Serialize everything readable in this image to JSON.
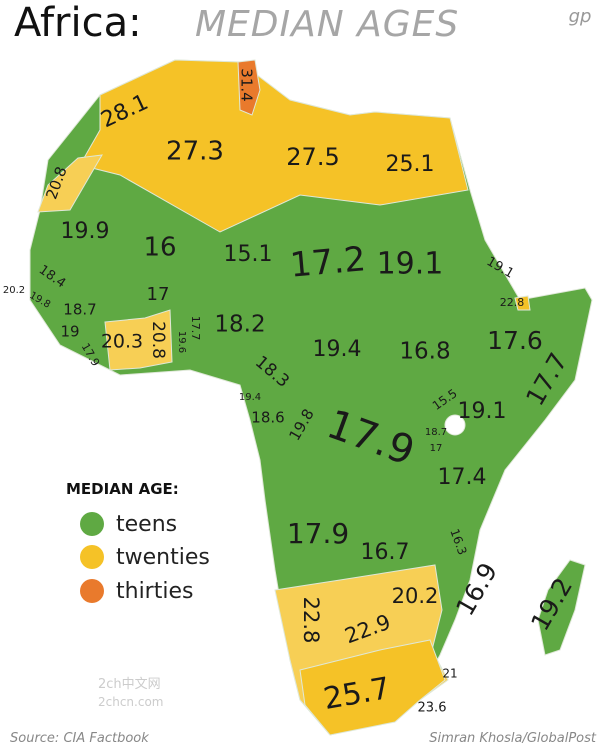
{
  "header": {
    "title": "Africa:",
    "subtitle": "MEDIAN AGES",
    "logo": "gp"
  },
  "map": {
    "labels": [
      {
        "text": "28.1"
      },
      {
        "text": "31.4"
      },
      {
        "text": "27.3"
      },
      {
        "text": "27.5"
      },
      {
        "text": "25.1"
      },
      {
        "text": "20.8"
      },
      {
        "text": "19.9"
      },
      {
        "text": "16"
      },
      {
        "text": "15.1"
      },
      {
        "text": "17.2"
      },
      {
        "text": "19.1"
      },
      {
        "text": "19.1"
      },
      {
        "text": "20.2"
      },
      {
        "text": "18.4"
      },
      {
        "text": "19.8"
      },
      {
        "text": "17"
      },
      {
        "text": "22.8"
      },
      {
        "text": "18.7"
      },
      {
        "text": "19"
      },
      {
        "text": "17.9"
      },
      {
        "text": "20.3"
      },
      {
        "text": "20.8"
      },
      {
        "text": "19.6"
      },
      {
        "text": "17.7"
      },
      {
        "text": "18.2"
      },
      {
        "text": "19.4"
      },
      {
        "text": "16.8"
      },
      {
        "text": "17.6"
      },
      {
        "text": "18.3"
      },
      {
        "text": "17.7"
      },
      {
        "text": "19.4"
      },
      {
        "text": "15.5"
      },
      {
        "text": "18.6"
      },
      {
        "text": "19.8"
      },
      {
        "text": "19.1"
      },
      {
        "text": "18.7"
      },
      {
        "text": "17"
      },
      {
        "text": "17.9"
      },
      {
        "text": "17.4"
      },
      {
        "text": "17.9"
      },
      {
        "text": "16.3"
      },
      {
        "text": "16.7"
      },
      {
        "text": "16.9"
      },
      {
        "text": "20.2"
      },
      {
        "text": "22.8"
      },
      {
        "text": "22.9"
      },
      {
        "text": "19.2"
      },
      {
        "text": "21"
      },
      {
        "text": "25.7"
      },
      {
        "text": "23.6"
      }
    ]
  },
  "legend": {
    "title": "MEDIAN AGE:",
    "items": [
      "teens",
      "twenties",
      "thirties"
    ]
  },
  "footer": {
    "source": "Source: CIA Factbook",
    "credit": "Simran Khosla/GlobalPost"
  },
  "watermark": {
    "line1": "2ch中文网",
    "line2": "2chcn.com"
  }
}
